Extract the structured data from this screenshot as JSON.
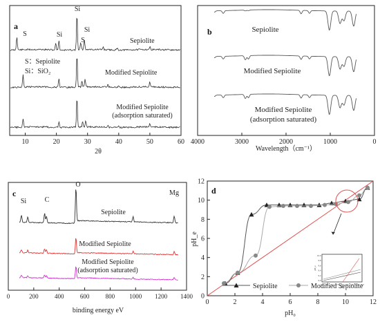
{
  "chart_data": [
    {
      "id": "a",
      "type": "line",
      "panel_label": "a",
      "xlabel": "2θ",
      "xlim": [
        5,
        60
      ],
      "x_ticks": [
        10,
        20,
        30,
        40,
        50,
        60
      ],
      "series": [
        {
          "name": "Sepiolite",
          "color": "#333333",
          "offset": 0,
          "peaks": [
            {
              "x": 7.3,
              "h": 20
            },
            {
              "x": 19.8,
              "h": 10
            },
            {
              "x": 20.8,
              "h": 14
            },
            {
              "x": 26.6,
              "h": 52
            },
            {
              "x": 27.8,
              "h": 10
            },
            {
              "x": 29.0,
              "h": 14
            },
            {
              "x": 35.0,
              "h": 4
            },
            {
              "x": 39.5,
              "h": 3
            },
            {
              "x": 50.0,
              "h": 4
            }
          ]
        },
        {
          "name": "Modified Sepiolite",
          "color": "#333333",
          "offset": 1,
          "peaks": [
            {
              "x": 9.3,
              "h": 18
            },
            {
              "x": 20.8,
              "h": 12
            },
            {
              "x": 26.6,
              "h": 48
            },
            {
              "x": 28.2,
              "h": 8
            },
            {
              "x": 29.2,
              "h": 12
            },
            {
              "x": 36.5,
              "h": 4
            },
            {
              "x": 40.0,
              "h": 3
            },
            {
              "x": 50.0,
              "h": 7
            }
          ]
        },
        {
          "name": "Modified Sepiolite\n(adsorption saturated)",
          "color": "#333333",
          "offset": 2,
          "peaks": [
            {
              "x": 9.3,
              "h": 12
            },
            {
              "x": 20.8,
              "h": 9
            },
            {
              "x": 26.6,
              "h": 44
            },
            {
              "x": 28.4,
              "h": 7
            },
            {
              "x": 29.4,
              "h": 10
            },
            {
              "x": 36.5,
              "h": 3
            },
            {
              "x": 40.0,
              "h": 3
            },
            {
              "x": 50.0,
              "h": 5
            }
          ]
        }
      ],
      "annotations": [
        {
          "text": "S",
          "x": 9.3,
          "series": 0
        },
        {
          "text": "Si",
          "x": 20.8,
          "series": 0
        },
        {
          "text": "Si",
          "x": 26.6,
          "series": 0
        },
        {
          "text": "Si",
          "x": 29.2,
          "series": 0,
          "dy": -12
        },
        {
          "text": "S",
          "x": 28.2,
          "series": 0,
          "dy": 2
        }
      ],
      "legend_notes": [
        "S：Sepiolite",
        "Si：SiO₂"
      ]
    },
    {
      "id": "b",
      "type": "line",
      "panel_label": "b",
      "xlabel": "Wavelength（cm⁻¹）",
      "xlim": [
        4000,
        0
      ],
      "x_ticks": [
        4000,
        3000,
        2000,
        1000,
        0
      ],
      "series": [
        {
          "name": "Sepiolite",
          "color": "#555555",
          "offset": 0
        },
        {
          "name": "Modified Sepiolite",
          "color": "#555555",
          "offset": 1
        },
        {
          "name": "Modified Sepiolite\n(adsorption saturated)",
          "color": "#555555",
          "offset": 2
        }
      ],
      "absorption_bands": [
        {
          "x": 3620,
          "depth": 2
        },
        {
          "x": 3420,
          "depth": 4
        },
        {
          "x": 2920,
          "depth": 6
        },
        {
          "x": 2850,
          "depth": 5
        },
        {
          "x": 1660,
          "depth": 5
        },
        {
          "x": 1470,
          "depth": 4
        },
        {
          "x": 1020,
          "depth": 28
        },
        {
          "x": 780,
          "depth": 18
        },
        {
          "x": 690,
          "depth": 14
        },
        {
          "x": 470,
          "depth": 22
        }
      ]
    },
    {
      "id": "c",
      "type": "line",
      "panel_label": "c",
      "xlabel": "binding energy eV",
      "xlim": [
        0,
        1400
      ],
      "x_ticks": [
        0,
        200,
        400,
        600,
        800,
        1000,
        1200,
        1400
      ],
      "series": [
        {
          "name": "Sepiolite",
          "color": "#333333",
          "offset": 0
        },
        {
          "name": "Modified Sepiolite",
          "color": "#e53030",
          "offset": 1
        },
        {
          "name": "Modified Sepiolite\n(adsorption saturated)",
          "color": "#d030d0",
          "offset": 2
        }
      ],
      "peaks": [
        {
          "x": 103,
          "h": 10
        },
        {
          "x": 153,
          "h": 8
        },
        {
          "x": 285,
          "h": 14
        },
        {
          "x": 300,
          "h": 10
        },
        {
          "x": 531,
          "h": 52
        },
        {
          "x": 980,
          "h": 8
        },
        {
          "x": 1303,
          "h": 10
        }
      ],
      "annotations": [
        {
          "text": "Si",
          "x": 100
        },
        {
          "text": "C",
          "x": 285
        },
        {
          "text": "O",
          "x": 531
        },
        {
          "text": "Mg",
          "x": 1303
        }
      ]
    },
    {
      "id": "d",
      "type": "line",
      "panel_label": "d",
      "xlabel": "pH₀",
      "ylabel": "pH_e",
      "xlim": [
        0,
        12
      ],
      "ylim": [
        0,
        12
      ],
      "x_ticks": [
        0,
        2,
        4,
        6,
        8,
        10,
        12
      ],
      "y_ticks": [
        0,
        2,
        4,
        6,
        8,
        10,
        12
      ],
      "series": [
        {
          "name": "Sepiolite",
          "marker": "triangle",
          "color": "#222222",
          "x": [
            1.3,
            2.2,
            3.2,
            4.3,
            5.2,
            6.0,
            7.0,
            8.1,
            9.0,
            10.0,
            11.0,
            11.6
          ],
          "y": [
            1.3,
            2.4,
            8.5,
            9.5,
            9.5,
            9.5,
            9.5,
            9.5,
            9.7,
            9.9,
            10.1,
            11.3
          ]
        },
        {
          "name": "Modified Sepiolite",
          "marker": "circle",
          "color": "#888888",
          "x": [
            1.2,
            2.2,
            3.5,
            4.5,
            5.5,
            6.5,
            7.5,
            8.5,
            9.3,
            10.2,
            11.0,
            11.6
          ],
          "y": [
            1.3,
            2.4,
            4.2,
            9.3,
            9.4,
            9.4,
            9.4,
            9.5,
            9.6,
            9.8,
            10.5,
            11.3
          ]
        }
      ],
      "reference_line": {
        "color": "#e05050",
        "x": [
          0,
          12
        ],
        "y": [
          0,
          12
        ]
      },
      "legend": {
        "placement": "bottom"
      },
      "inset": {
        "x_ticks": [
          "9.2",
          "9.3",
          "9.4",
          "9.5",
          "9.6",
          "9.7",
          "9.8",
          "9.9",
          "10.0"
        ],
        "y_ticks": [
          "10.0",
          "9.8",
          "9.6",
          "9.4",
          "9.2",
          "9.0"
        ],
        "ylabel": "pH_e",
        "xlabel": "pH₀"
      }
    }
  ]
}
